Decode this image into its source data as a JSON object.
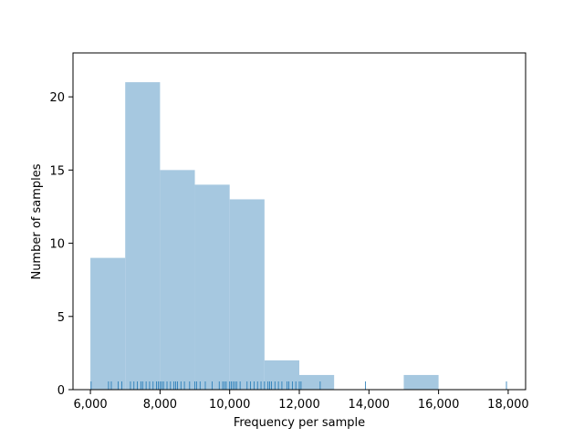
{
  "chart_data": {
    "type": "bar",
    "subtype": "histogram-with-rug",
    "xlabel": "Frequency per sample",
    "ylabel": "Number of samples",
    "xlim": [
      5500,
      18500
    ],
    "ylim": [
      0,
      23
    ],
    "x_ticks": [
      6000,
      8000,
      10000,
      12000,
      14000,
      16000,
      18000
    ],
    "x_tick_labels": [
      "6,000",
      "8,000",
      "10,000",
      "12,000",
      "14,000",
      "16,000",
      "18,000"
    ],
    "y_ticks": [
      0,
      5,
      10,
      15,
      20
    ],
    "y_tick_labels": [
      "0",
      "5",
      "10",
      "15",
      "20"
    ],
    "grid": false,
    "bar_color": "#a6c8e0",
    "rug_color": "#1f77b4",
    "bins": [
      {
        "start": 6000,
        "end": 7000,
        "count": 9
      },
      {
        "start": 7000,
        "end": 8000,
        "count": 21
      },
      {
        "start": 8000,
        "end": 9000,
        "count": 15
      },
      {
        "start": 9000,
        "end": 10000,
        "count": 14
      },
      {
        "start": 10000,
        "end": 11000,
        "count": 13
      },
      {
        "start": 11000,
        "end": 12000,
        "count": 2
      },
      {
        "start": 12000,
        "end": 13000,
        "count": 1
      },
      {
        "start": 13000,
        "end": 14000,
        "count": 0
      },
      {
        "start": 14000,
        "end": 15000,
        "count": 0
      },
      {
        "start": 15000,
        "end": 16000,
        "count": 1
      }
    ],
    "rug_values": [
      6020,
      6520,
      6600,
      6800,
      6900,
      7150,
      7250,
      7350,
      7450,
      7500,
      7600,
      7700,
      7800,
      7900,
      7950,
      8000,
      8050,
      8100,
      8200,
      8300,
      8400,
      8450,
      8500,
      8600,
      8700,
      8850,
      9000,
      9050,
      9150,
      9300,
      9500,
      9700,
      9800,
      9850,
      9900,
      10000,
      10050,
      10100,
      10150,
      10200,
      10300,
      10500,
      10600,
      10700,
      10800,
      10900,
      11000,
      11100,
      11150,
      11200,
      11300,
      11400,
      11500,
      11650,
      11700,
      11800,
      11900,
      12000,
      12050,
      12600,
      13900,
      17950
    ]
  }
}
